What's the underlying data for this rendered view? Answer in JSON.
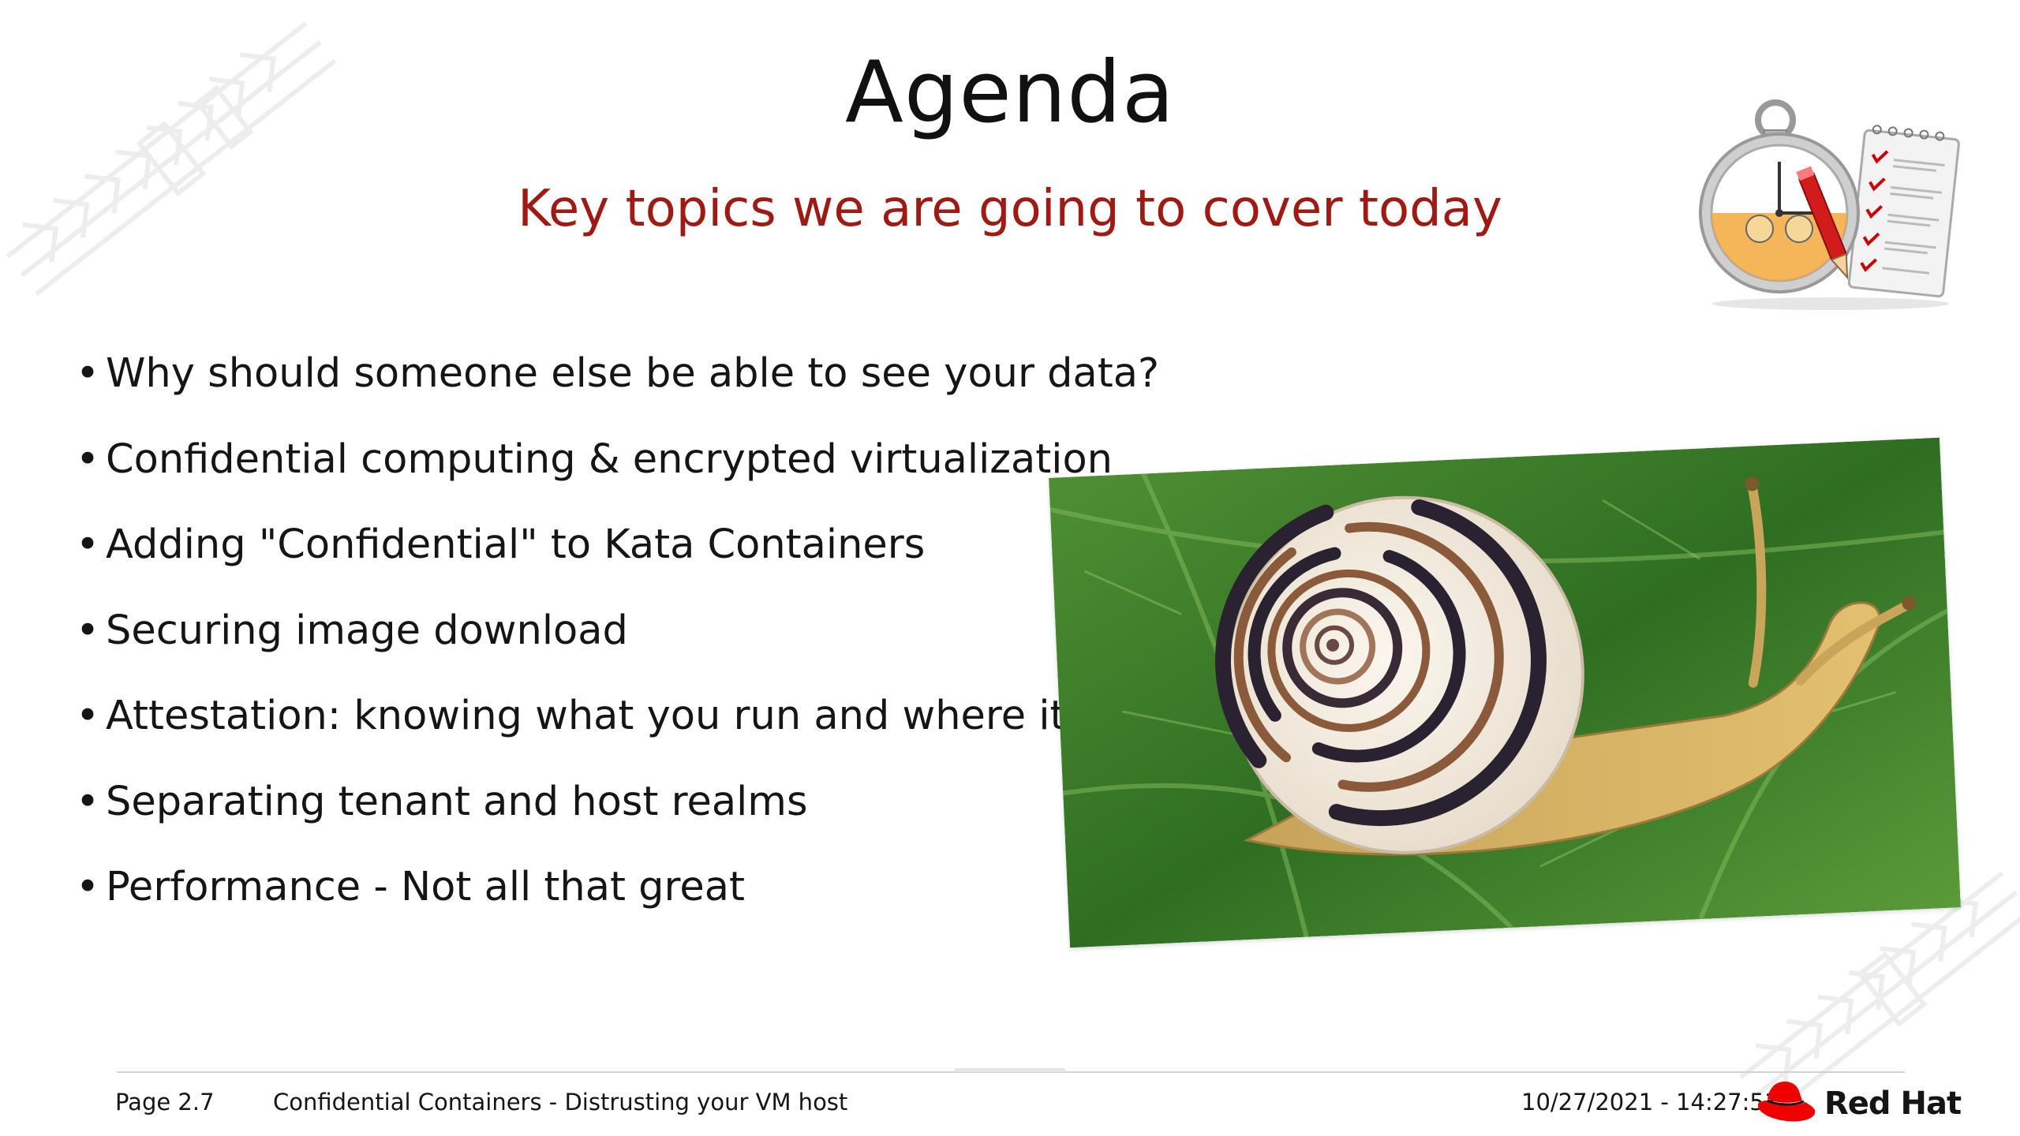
{
  "slide": {
    "title": "Agenda",
    "subtitle": "Key topics we are going to cover today",
    "bullets": [
      "Why should someone else be able to see your data?",
      "Confidential computing & encrypted virtualization",
      "Adding \"Confidential\" to Kata Containers",
      "Securing image download",
      "Attestation: knowing what you run and where it runs",
      "Separating tenant and host realms",
      "Performance - Not all that great"
    ],
    "bullet_glyph": "•"
  },
  "footer": {
    "page": "Page 2.7",
    "deck_title": "Confidential Containers - Distrusting your VM host",
    "timestamp": "10/27/2021 - 14:27:51",
    "brand": "Red Hat"
  },
  "colors": {
    "subtitle": "#a01a14",
    "brand_red": "#ee0000",
    "text": "#151515"
  },
  "icons": [
    "stopwatch-checklist-icon",
    "snail-photo",
    "redhat-fedora-icon"
  ]
}
